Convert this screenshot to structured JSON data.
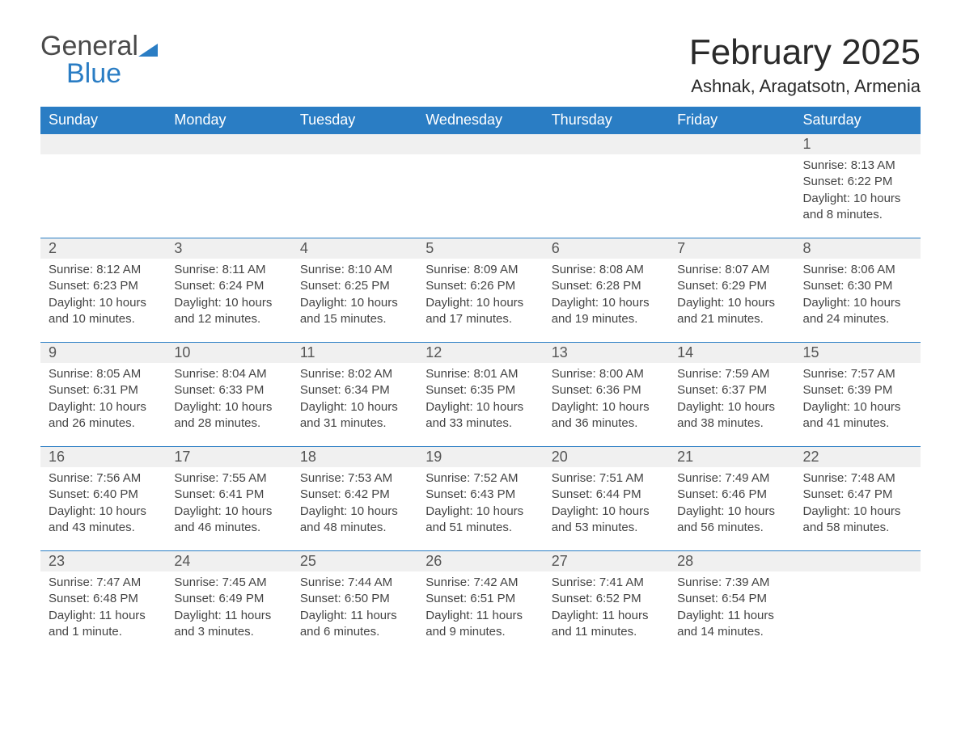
{
  "logo": {
    "general": "General",
    "blue": "Blue"
  },
  "title": "February 2025",
  "location": "Ashnak, Aragatsotn, Armenia",
  "colors": {
    "header_bg": "#2a7dc4",
    "daynum_bg": "#f0f0f0",
    "border": "#2a7dc4",
    "text": "#333333"
  },
  "weekdays": [
    "Sunday",
    "Monday",
    "Tuesday",
    "Wednesday",
    "Thursday",
    "Friday",
    "Saturday"
  ],
  "weeks": [
    [
      null,
      null,
      null,
      null,
      null,
      null,
      {
        "n": "1",
        "sr": "Sunrise: 8:13 AM",
        "ss": "Sunset: 6:22 PM",
        "dl": "Daylight: 10 hours and 8 minutes."
      }
    ],
    [
      {
        "n": "2",
        "sr": "Sunrise: 8:12 AM",
        "ss": "Sunset: 6:23 PM",
        "dl": "Daylight: 10 hours and 10 minutes."
      },
      {
        "n": "3",
        "sr": "Sunrise: 8:11 AM",
        "ss": "Sunset: 6:24 PM",
        "dl": "Daylight: 10 hours and 12 minutes."
      },
      {
        "n": "4",
        "sr": "Sunrise: 8:10 AM",
        "ss": "Sunset: 6:25 PM",
        "dl": "Daylight: 10 hours and 15 minutes."
      },
      {
        "n": "5",
        "sr": "Sunrise: 8:09 AM",
        "ss": "Sunset: 6:26 PM",
        "dl": "Daylight: 10 hours and 17 minutes."
      },
      {
        "n": "6",
        "sr": "Sunrise: 8:08 AM",
        "ss": "Sunset: 6:28 PM",
        "dl": "Daylight: 10 hours and 19 minutes."
      },
      {
        "n": "7",
        "sr": "Sunrise: 8:07 AM",
        "ss": "Sunset: 6:29 PM",
        "dl": "Daylight: 10 hours and 21 minutes."
      },
      {
        "n": "8",
        "sr": "Sunrise: 8:06 AM",
        "ss": "Sunset: 6:30 PM",
        "dl": "Daylight: 10 hours and 24 minutes."
      }
    ],
    [
      {
        "n": "9",
        "sr": "Sunrise: 8:05 AM",
        "ss": "Sunset: 6:31 PM",
        "dl": "Daylight: 10 hours and 26 minutes."
      },
      {
        "n": "10",
        "sr": "Sunrise: 8:04 AM",
        "ss": "Sunset: 6:33 PM",
        "dl": "Daylight: 10 hours and 28 minutes."
      },
      {
        "n": "11",
        "sr": "Sunrise: 8:02 AM",
        "ss": "Sunset: 6:34 PM",
        "dl": "Daylight: 10 hours and 31 minutes."
      },
      {
        "n": "12",
        "sr": "Sunrise: 8:01 AM",
        "ss": "Sunset: 6:35 PM",
        "dl": "Daylight: 10 hours and 33 minutes."
      },
      {
        "n": "13",
        "sr": "Sunrise: 8:00 AM",
        "ss": "Sunset: 6:36 PM",
        "dl": "Daylight: 10 hours and 36 minutes."
      },
      {
        "n": "14",
        "sr": "Sunrise: 7:59 AM",
        "ss": "Sunset: 6:37 PM",
        "dl": "Daylight: 10 hours and 38 minutes."
      },
      {
        "n": "15",
        "sr": "Sunrise: 7:57 AM",
        "ss": "Sunset: 6:39 PM",
        "dl": "Daylight: 10 hours and 41 minutes."
      }
    ],
    [
      {
        "n": "16",
        "sr": "Sunrise: 7:56 AM",
        "ss": "Sunset: 6:40 PM",
        "dl": "Daylight: 10 hours and 43 minutes."
      },
      {
        "n": "17",
        "sr": "Sunrise: 7:55 AM",
        "ss": "Sunset: 6:41 PM",
        "dl": "Daylight: 10 hours and 46 minutes."
      },
      {
        "n": "18",
        "sr": "Sunrise: 7:53 AM",
        "ss": "Sunset: 6:42 PM",
        "dl": "Daylight: 10 hours and 48 minutes."
      },
      {
        "n": "19",
        "sr": "Sunrise: 7:52 AM",
        "ss": "Sunset: 6:43 PM",
        "dl": "Daylight: 10 hours and 51 minutes."
      },
      {
        "n": "20",
        "sr": "Sunrise: 7:51 AM",
        "ss": "Sunset: 6:44 PM",
        "dl": "Daylight: 10 hours and 53 minutes."
      },
      {
        "n": "21",
        "sr": "Sunrise: 7:49 AM",
        "ss": "Sunset: 6:46 PM",
        "dl": "Daylight: 10 hours and 56 minutes."
      },
      {
        "n": "22",
        "sr": "Sunrise: 7:48 AM",
        "ss": "Sunset: 6:47 PM",
        "dl": "Daylight: 10 hours and 58 minutes."
      }
    ],
    [
      {
        "n": "23",
        "sr": "Sunrise: 7:47 AM",
        "ss": "Sunset: 6:48 PM",
        "dl": "Daylight: 11 hours and 1 minute."
      },
      {
        "n": "24",
        "sr": "Sunrise: 7:45 AM",
        "ss": "Sunset: 6:49 PM",
        "dl": "Daylight: 11 hours and 3 minutes."
      },
      {
        "n": "25",
        "sr": "Sunrise: 7:44 AM",
        "ss": "Sunset: 6:50 PM",
        "dl": "Daylight: 11 hours and 6 minutes."
      },
      {
        "n": "26",
        "sr": "Sunrise: 7:42 AM",
        "ss": "Sunset: 6:51 PM",
        "dl": "Daylight: 11 hours and 9 minutes."
      },
      {
        "n": "27",
        "sr": "Sunrise: 7:41 AM",
        "ss": "Sunset: 6:52 PM",
        "dl": "Daylight: 11 hours and 11 minutes."
      },
      {
        "n": "28",
        "sr": "Sunrise: 7:39 AM",
        "ss": "Sunset: 6:54 PM",
        "dl": "Daylight: 11 hours and 14 minutes."
      },
      null
    ]
  ]
}
